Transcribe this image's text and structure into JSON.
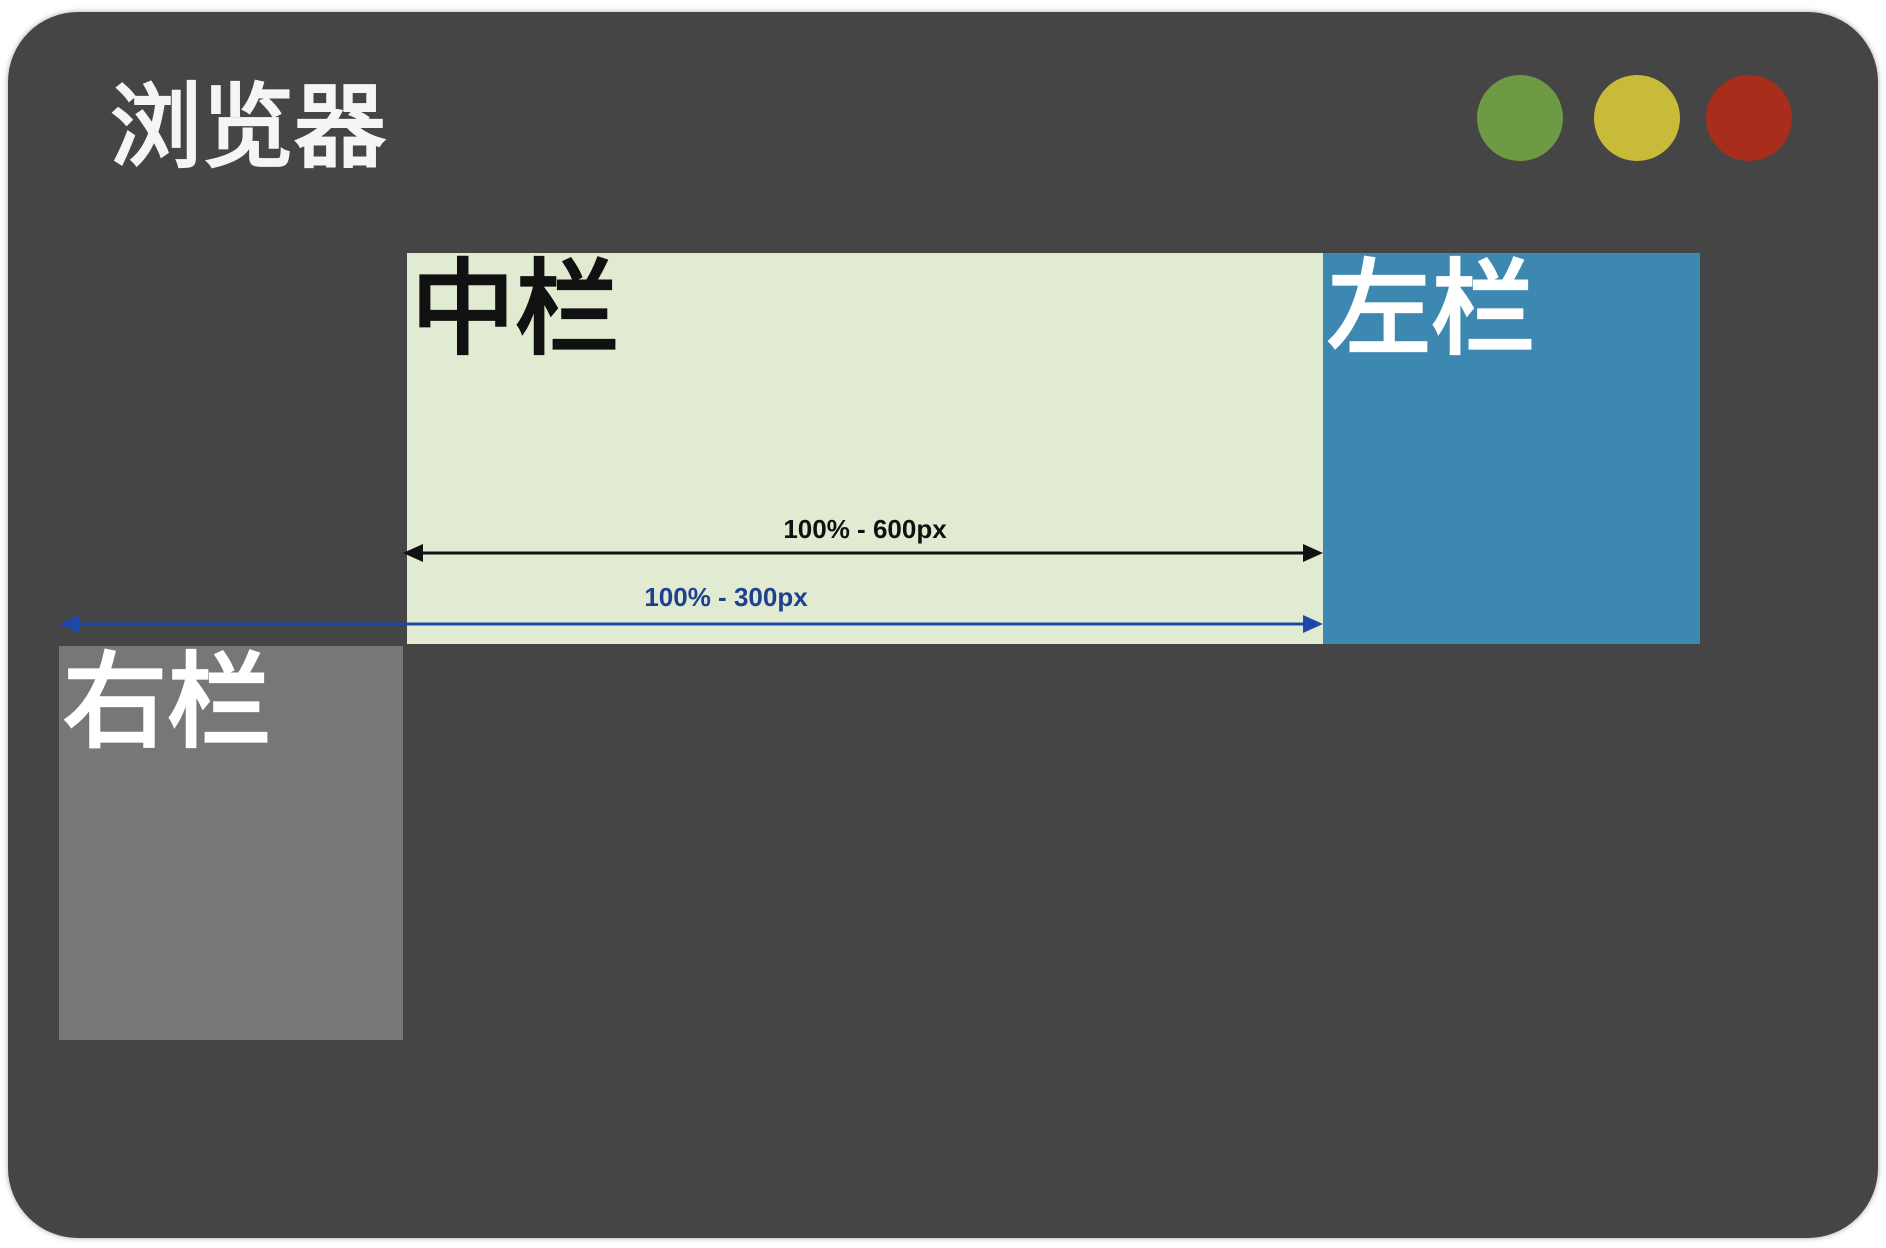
{
  "title": "浏览器",
  "window_controls": [
    {
      "name": "green",
      "color": "#6e9a43"
    },
    {
      "name": "yellow",
      "color": "#c9bb3a"
    },
    {
      "name": "red",
      "color": "#a92d1b"
    }
  ],
  "columns": {
    "middle": {
      "label": "中栏",
      "bg": "#e1ebd2",
      "text_color": "#111111"
    },
    "left": {
      "label": "左栏",
      "bg": "#3d88b0",
      "text_color": "#ffffff"
    },
    "right": {
      "label": "右栏",
      "bg": "#777777",
      "text_color": "#ffffff"
    }
  },
  "annotations": {
    "middle_width": {
      "label": "100% - 600px",
      "color": "#111111"
    },
    "wrapper_width": {
      "label": "100% - 300px",
      "color": "#1f3f8f"
    }
  }
}
